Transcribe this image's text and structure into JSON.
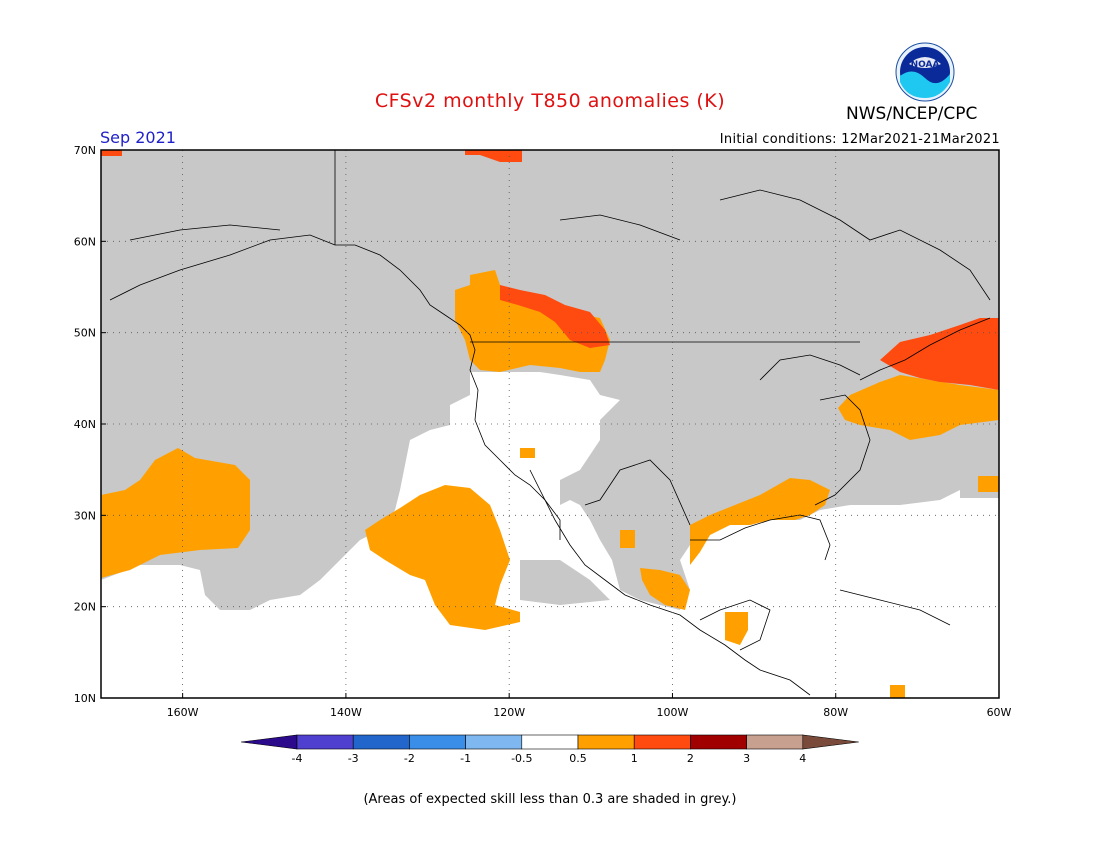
{
  "title": "CFSv2 monthly T850 anomalies (K)",
  "agency": "NWS/NCEP/CPC",
  "logo": {
    "text": "NOAA"
  },
  "month_label": "Sep 2021",
  "initial_conditions": "Initial conditions: 12Mar2021-21Mar2021",
  "footnote": "(Areas of expected skill less than 0.3 are shaded in grey.)",
  "map": {
    "lon_labels": [
      "160W",
      "140W",
      "120W",
      "100W",
      "80W",
      "60W"
    ],
    "lat_labels": [
      "70N",
      "60N",
      "50N",
      "40N",
      "30N",
      "20N",
      "10N"
    ],
    "extent": {
      "lon": [
        -170,
        -60
      ],
      "lat": [
        10,
        70
      ]
    }
  },
  "legend": {
    "colors": [
      "#2b0a8c",
      "#5040d0",
      "#2266cc",
      "#3a8ee8",
      "#7fb8f0",
      "#ffffff",
      "#ffa000",
      "#ff4a10",
      "#a00000",
      "#c8a090",
      "#7a4a3a"
    ],
    "labels": [
      "-4",
      "-3",
      "-2",
      "-1",
      "-0.5",
      "0.5",
      "1",
      "2",
      "3",
      "4"
    ]
  },
  "colors": {
    "low_skill": "#c8c8c8",
    "title": "#e01010",
    "month": "#2020c8"
  }
}
